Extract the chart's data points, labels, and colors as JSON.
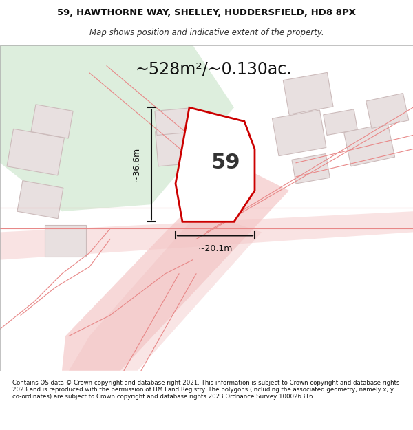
{
  "title_line1": "59, HAWTHORNE WAY, SHELLEY, HUDDERSFIELD, HD8 8PX",
  "title_line2": "Map shows position and indicative extent of the property.",
  "area_text": "~528m²/~0.130ac.",
  "plot_number": "59",
  "dim_vertical": "~36.6m",
  "dim_horizontal": "~20.1m",
  "footer_text": "Contains OS data © Crown copyright and database right 2021. This information is subject to Crown copyright and database rights 2023 and is reproduced with the permission of HM Land Registry. The polygons (including the associated geometry, namely x, y co-ordinates) are subject to Crown copyright and database rights 2023 Ordnance Survey 100026316.",
  "bg_color": "#ffffff",
  "map_bg": "#f5f0f0",
  "green_area_color": "#ddeedd",
  "road_color": "#f5c8c8",
  "building_color": "#e8e0e0",
  "plot_outline_color": "#cc0000",
  "plot_fill_color": "#ffffff",
  "dim_line_color": "#111111",
  "other_road_color": "#f0d8d8"
}
